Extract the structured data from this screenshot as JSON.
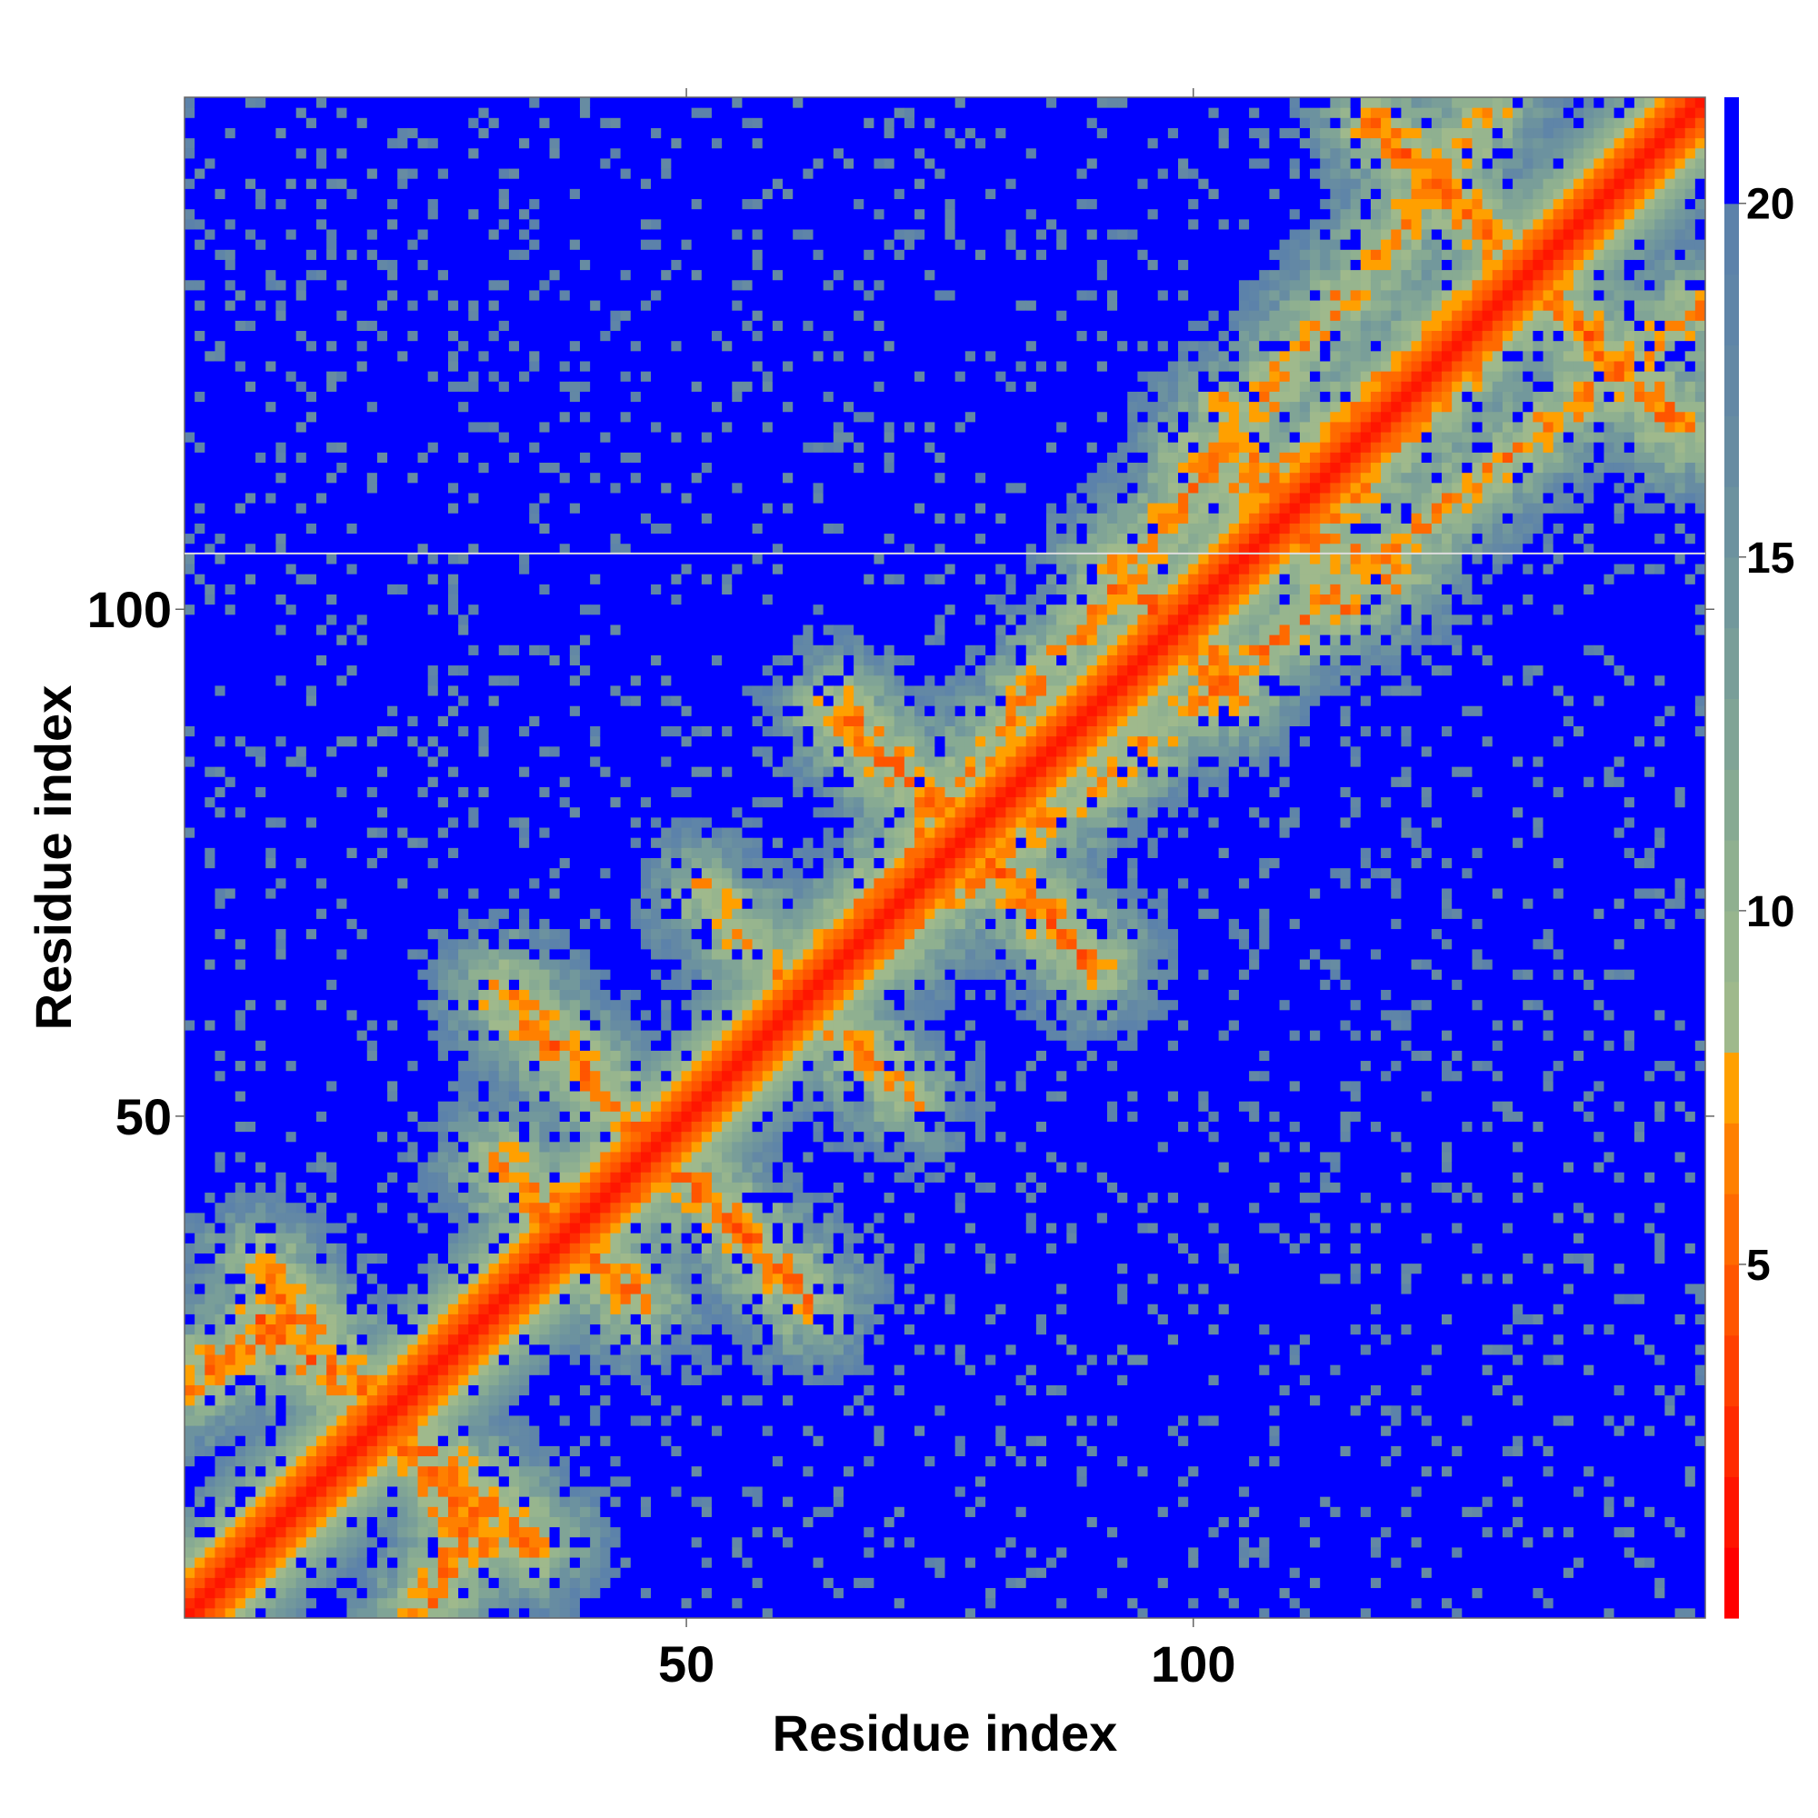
{
  "chart_data": {
    "type": "heatmap",
    "title": "",
    "xlabel": "Residue index",
    "ylabel": "Residue index",
    "n_residues": 150,
    "xlim": [
      1,
      150
    ],
    "ylim": [
      1,
      150
    ],
    "x_ticks": [
      50,
      100
    ],
    "y_ticks": [
      50,
      100
    ],
    "colorbar": {
      "range": [
        0,
        21.5
      ],
      "ticks": [
        5,
        10,
        15,
        20
      ],
      "levels": [
        {
          "max": 1.0,
          "color": "#ff0000"
        },
        {
          "max": 2.0,
          "color": "#ff1500"
        },
        {
          "max": 3.0,
          "color": "#ff2a00"
        },
        {
          "max": 4.0,
          "color": "#ff4000"
        },
        {
          "max": 5.0,
          "color": "#ff5500"
        },
        {
          "max": 6.0,
          "color": "#ff6a00"
        },
        {
          "max": 7.0,
          "color": "#ff8000"
        },
        {
          "max": 8.0,
          "color": "#ffa000"
        },
        {
          "max": 9.0,
          "color": "#9fb98c"
        },
        {
          "max": 10.0,
          "color": "#97b58e"
        },
        {
          "max": 11.0,
          "color": "#8fb090"
        },
        {
          "max": 12.0,
          "color": "#87aa93"
        },
        {
          "max": 13.0,
          "color": "#80a496"
        },
        {
          "max": 14.0,
          "color": "#799e99"
        },
        {
          "max": 15.0,
          "color": "#72989c"
        },
        {
          "max": 16.0,
          "color": "#6c929f"
        },
        {
          "max": 17.0,
          "color": "#678ca2"
        },
        {
          "max": 18.0,
          "color": "#6388a5"
        },
        {
          "max": 19.0,
          "color": "#5f85a8"
        },
        {
          "max": 20.0,
          "color": "#5c82aa"
        },
        {
          "max": 21.5,
          "color": "#0000ff"
        }
      ]
    },
    "diagonal_band": {
      "core_distance": 1.5,
      "half_width": 7
    },
    "contact_bands": [
      {
        "a": 8,
        "b": 30,
        "c": 35,
        "d": 8,
        "max_value": 6
      },
      {
        "a": 12,
        "b": 30,
        "c": 1,
        "d": 24,
        "max_value": 6
      },
      {
        "a": 32,
        "b": 45,
        "c": 45,
        "d": 32,
        "max_value": 6
      },
      {
        "a": 32,
        "b": 62,
        "c": 62,
        "d": 32,
        "max_value": 6
      },
      {
        "a": 55,
        "b": 68,
        "c": 72,
        "d": 52,
        "max_value": 7
      },
      {
        "a": 65,
        "b": 90,
        "c": 90,
        "d": 65,
        "max_value": 6
      },
      {
        "a": 92,
        "b": 104,
        "c": 104,
        "d": 92,
        "max_value": 6
      },
      {
        "a": 100,
        "b": 115,
        "c": 120,
        "d": 103,
        "max_value": 7
      },
      {
        "a": 118,
        "b": 148,
        "c": 148,
        "d": 118,
        "max_value": 6
      },
      {
        "a": 36,
        "b": 40,
        "c": 150,
        "d": 130,
        "max_value": 7
      },
      {
        "a": 105,
        "b": 110,
        "c": 138,
        "d": 140,
        "max_value": 7
      }
    ],
    "noise_seed": 7
  }
}
